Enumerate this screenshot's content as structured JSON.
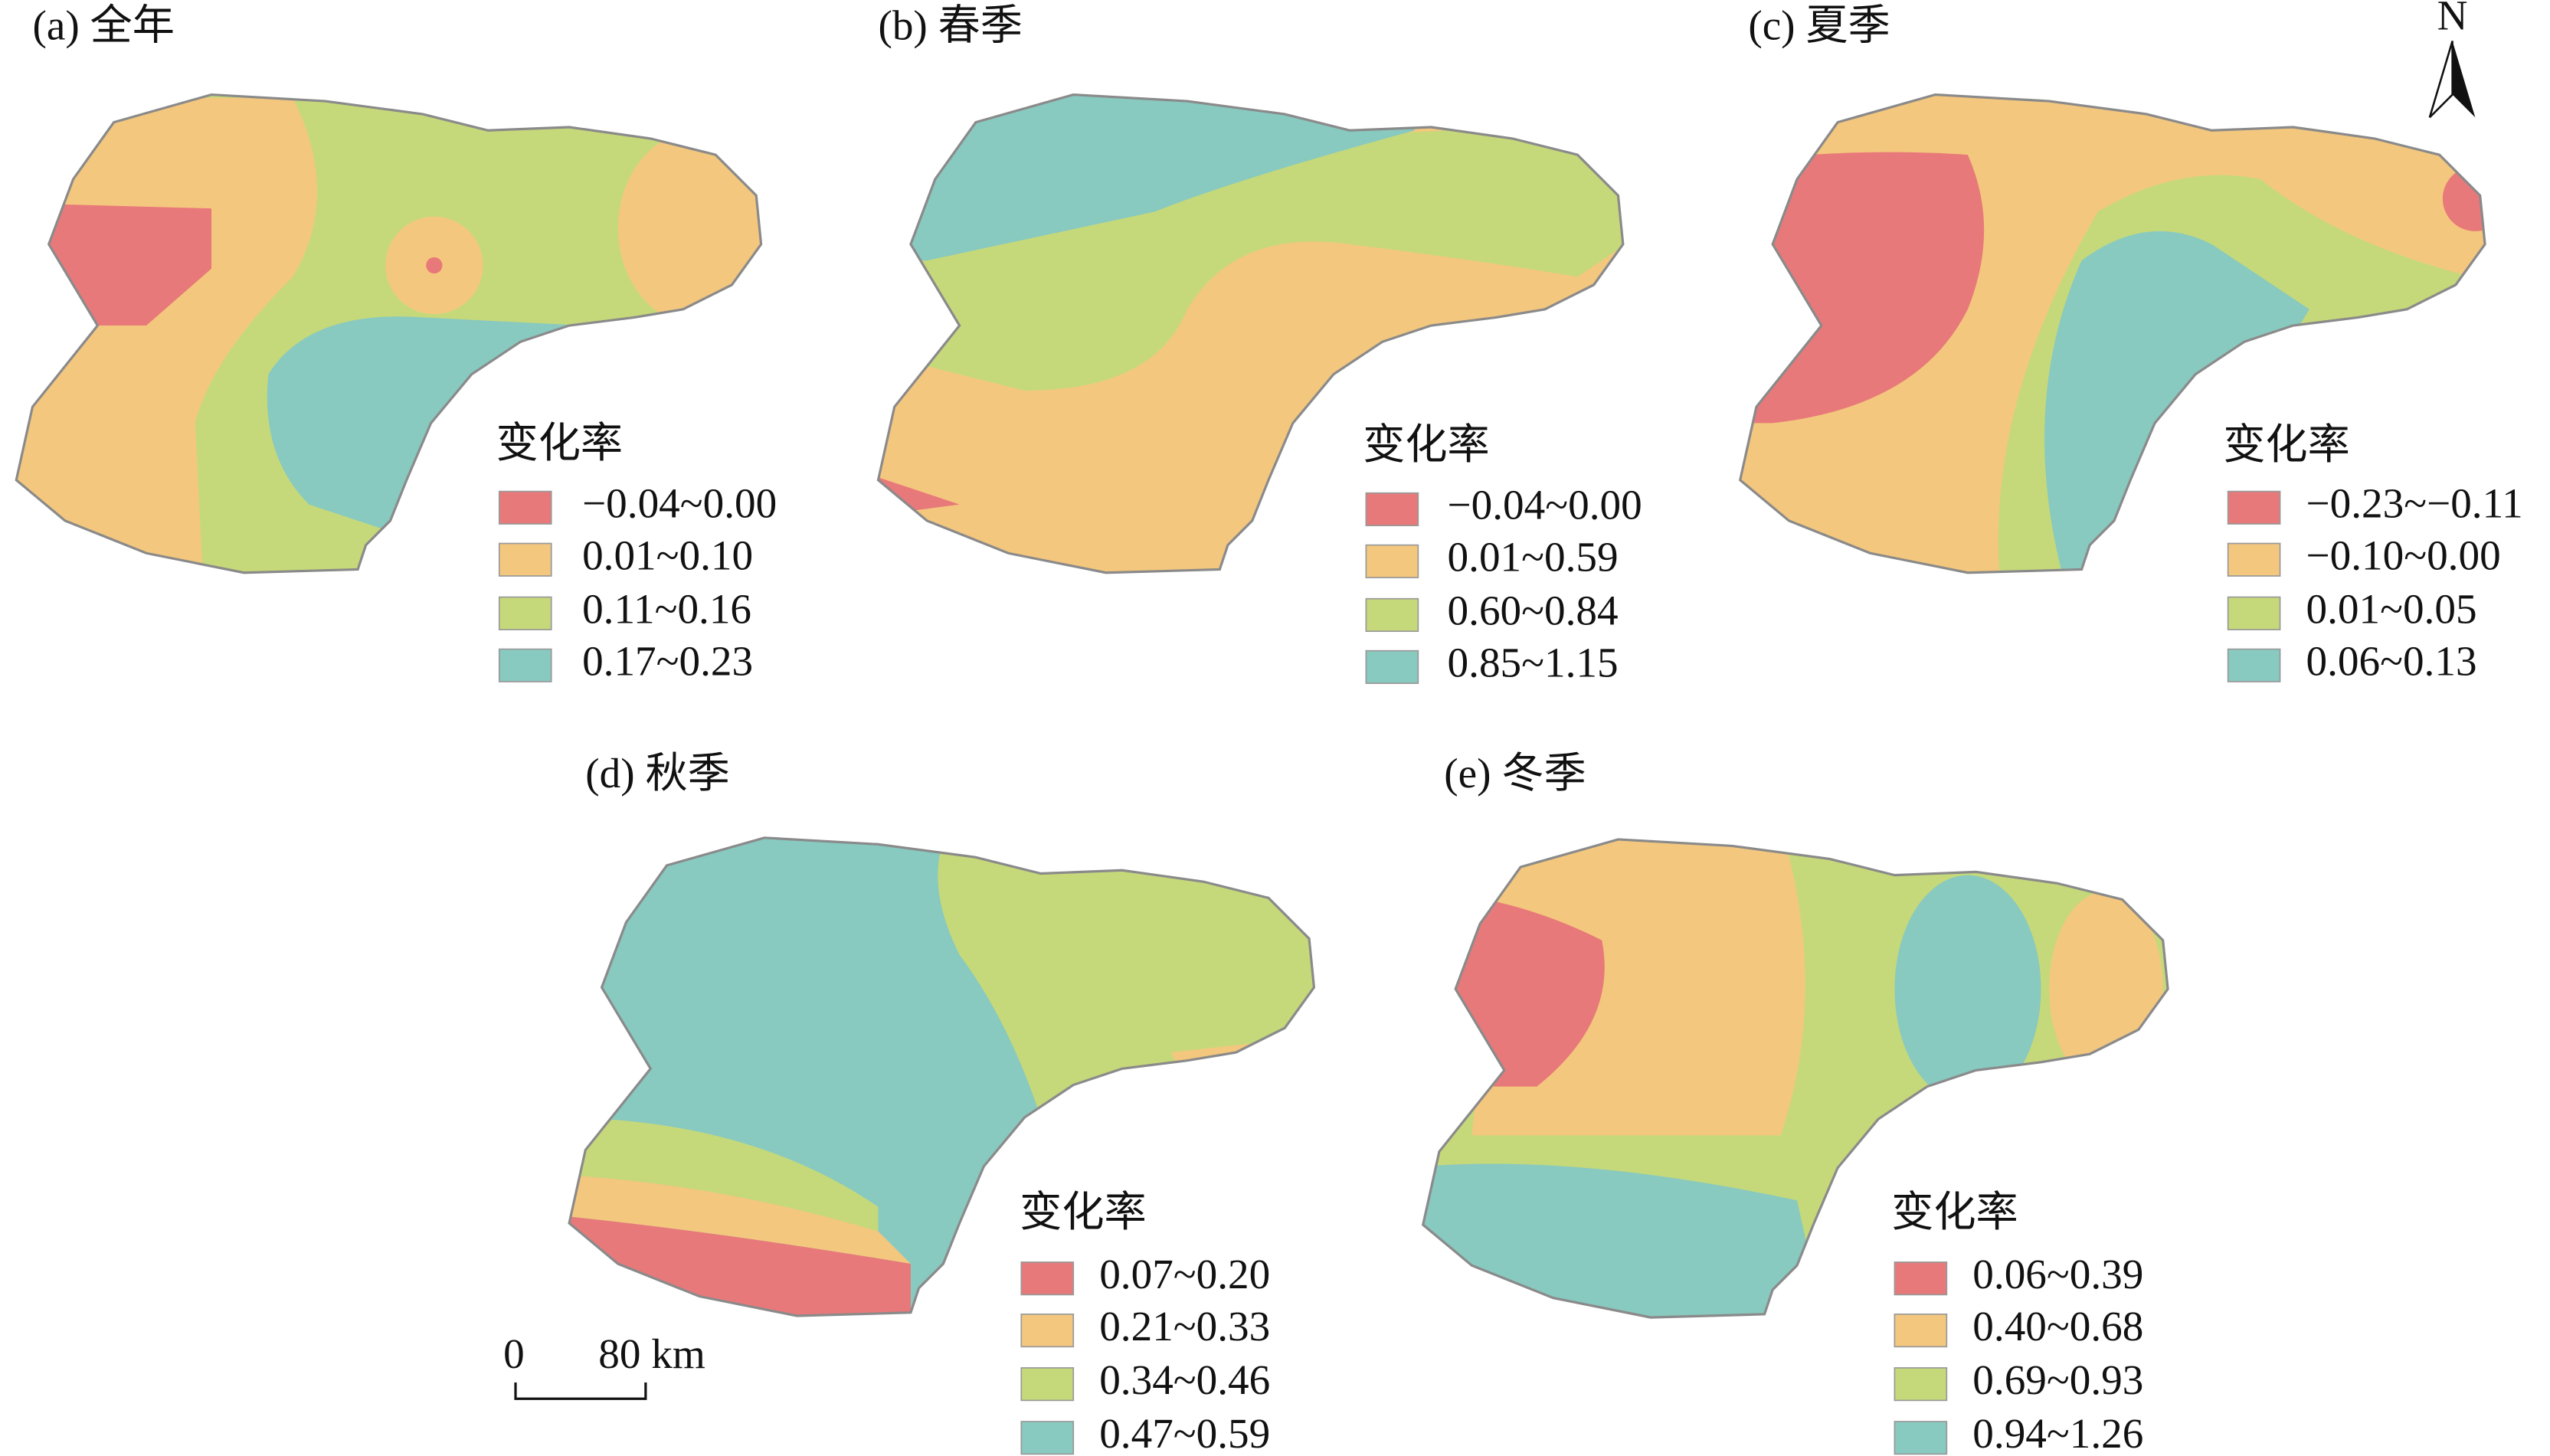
{
  "panels": [
    {
      "title": "(a) 全年",
      "legend_title": "变化率",
      "legend": [
        {
          "label": "−0.04~0.00",
          "color": "#e8797a"
        },
        {
          "label": "0.01~0.10",
          "color": "#f4c77e"
        },
        {
          "label": "0.11~0.16",
          "color": "#c5d97a"
        },
        {
          "label": "0.17~0.23",
          "color": "#88c9c0"
        }
      ]
    },
    {
      "title": "(b) 春季",
      "legend_title": "变化率",
      "legend": [
        {
          "label": "−0.04~0.00",
          "color": "#e8797a"
        },
        {
          "label": "0.01~0.59",
          "color": "#f4c77e"
        },
        {
          "label": "0.60~0.84",
          "color": "#c5d97a"
        },
        {
          "label": "0.85~1.15",
          "color": "#88c9c0"
        }
      ]
    },
    {
      "title": "(c) 夏季",
      "legend_title": "变化率",
      "legend": [
        {
          "label": "−0.23~−0.11",
          "color": "#e8797a"
        },
        {
          "label": "−0.10~0.00",
          "color": "#f4c77e"
        },
        {
          "label": "0.01~0.05",
          "color": "#c5d97a"
        },
        {
          "label": "0.06~0.13",
          "color": "#88c9c0"
        }
      ]
    },
    {
      "title": "(d) 秋季",
      "legend_title": "变化率",
      "legend": [
        {
          "label": "0.07~0.20",
          "color": "#e8797a"
        },
        {
          "label": "0.21~0.33",
          "color": "#f4c77e"
        },
        {
          "label": "0.34~0.46",
          "color": "#c5d97a"
        },
        {
          "label": "0.47~0.59",
          "color": "#88c9c0"
        }
      ]
    },
    {
      "title": "(e) 冬季",
      "legend_title": "变化率",
      "legend": [
        {
          "label": "0.06~0.39",
          "color": "#e8797a"
        },
        {
          "label": "0.40~0.68",
          "color": "#f4c77e"
        },
        {
          "label": "0.69~0.93",
          "color": "#c5d97a"
        },
        {
          "label": "0.94~1.26",
          "color": "#88c9c0"
        }
      ]
    }
  ],
  "scale_bar": {
    "labels": [
      "0",
      "80 km"
    ]
  },
  "north": "N"
}
